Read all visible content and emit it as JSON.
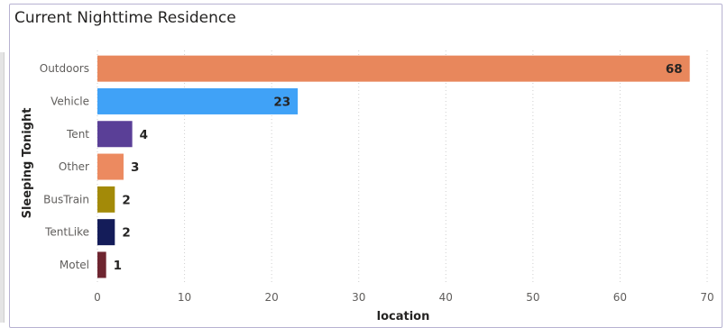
{
  "chart_data": {
    "type": "bar",
    "orientation": "horizontal",
    "title": "Current Nighttime Residence",
    "xlabel": "location",
    "ylabel": "Sleeping Tonight",
    "categories": [
      "Outdoors",
      "Vehicle",
      "Tent",
      "Other",
      "BusTrain",
      "TentLike",
      "Motel"
    ],
    "values": [
      68,
      23,
      4,
      3,
      2,
      2,
      1
    ],
    "colors": [
      "#e8875c",
      "#40a2f7",
      "#5a3f97",
      "#ec8a60",
      "#a38a08",
      "#141c59",
      "#6e2530"
    ],
    "xlim": [
      0,
      70
    ],
    "xticks": [
      0,
      10,
      20,
      30,
      40,
      50,
      60,
      70
    ],
    "grid": "vertical-dotted",
    "legend": "none"
  }
}
